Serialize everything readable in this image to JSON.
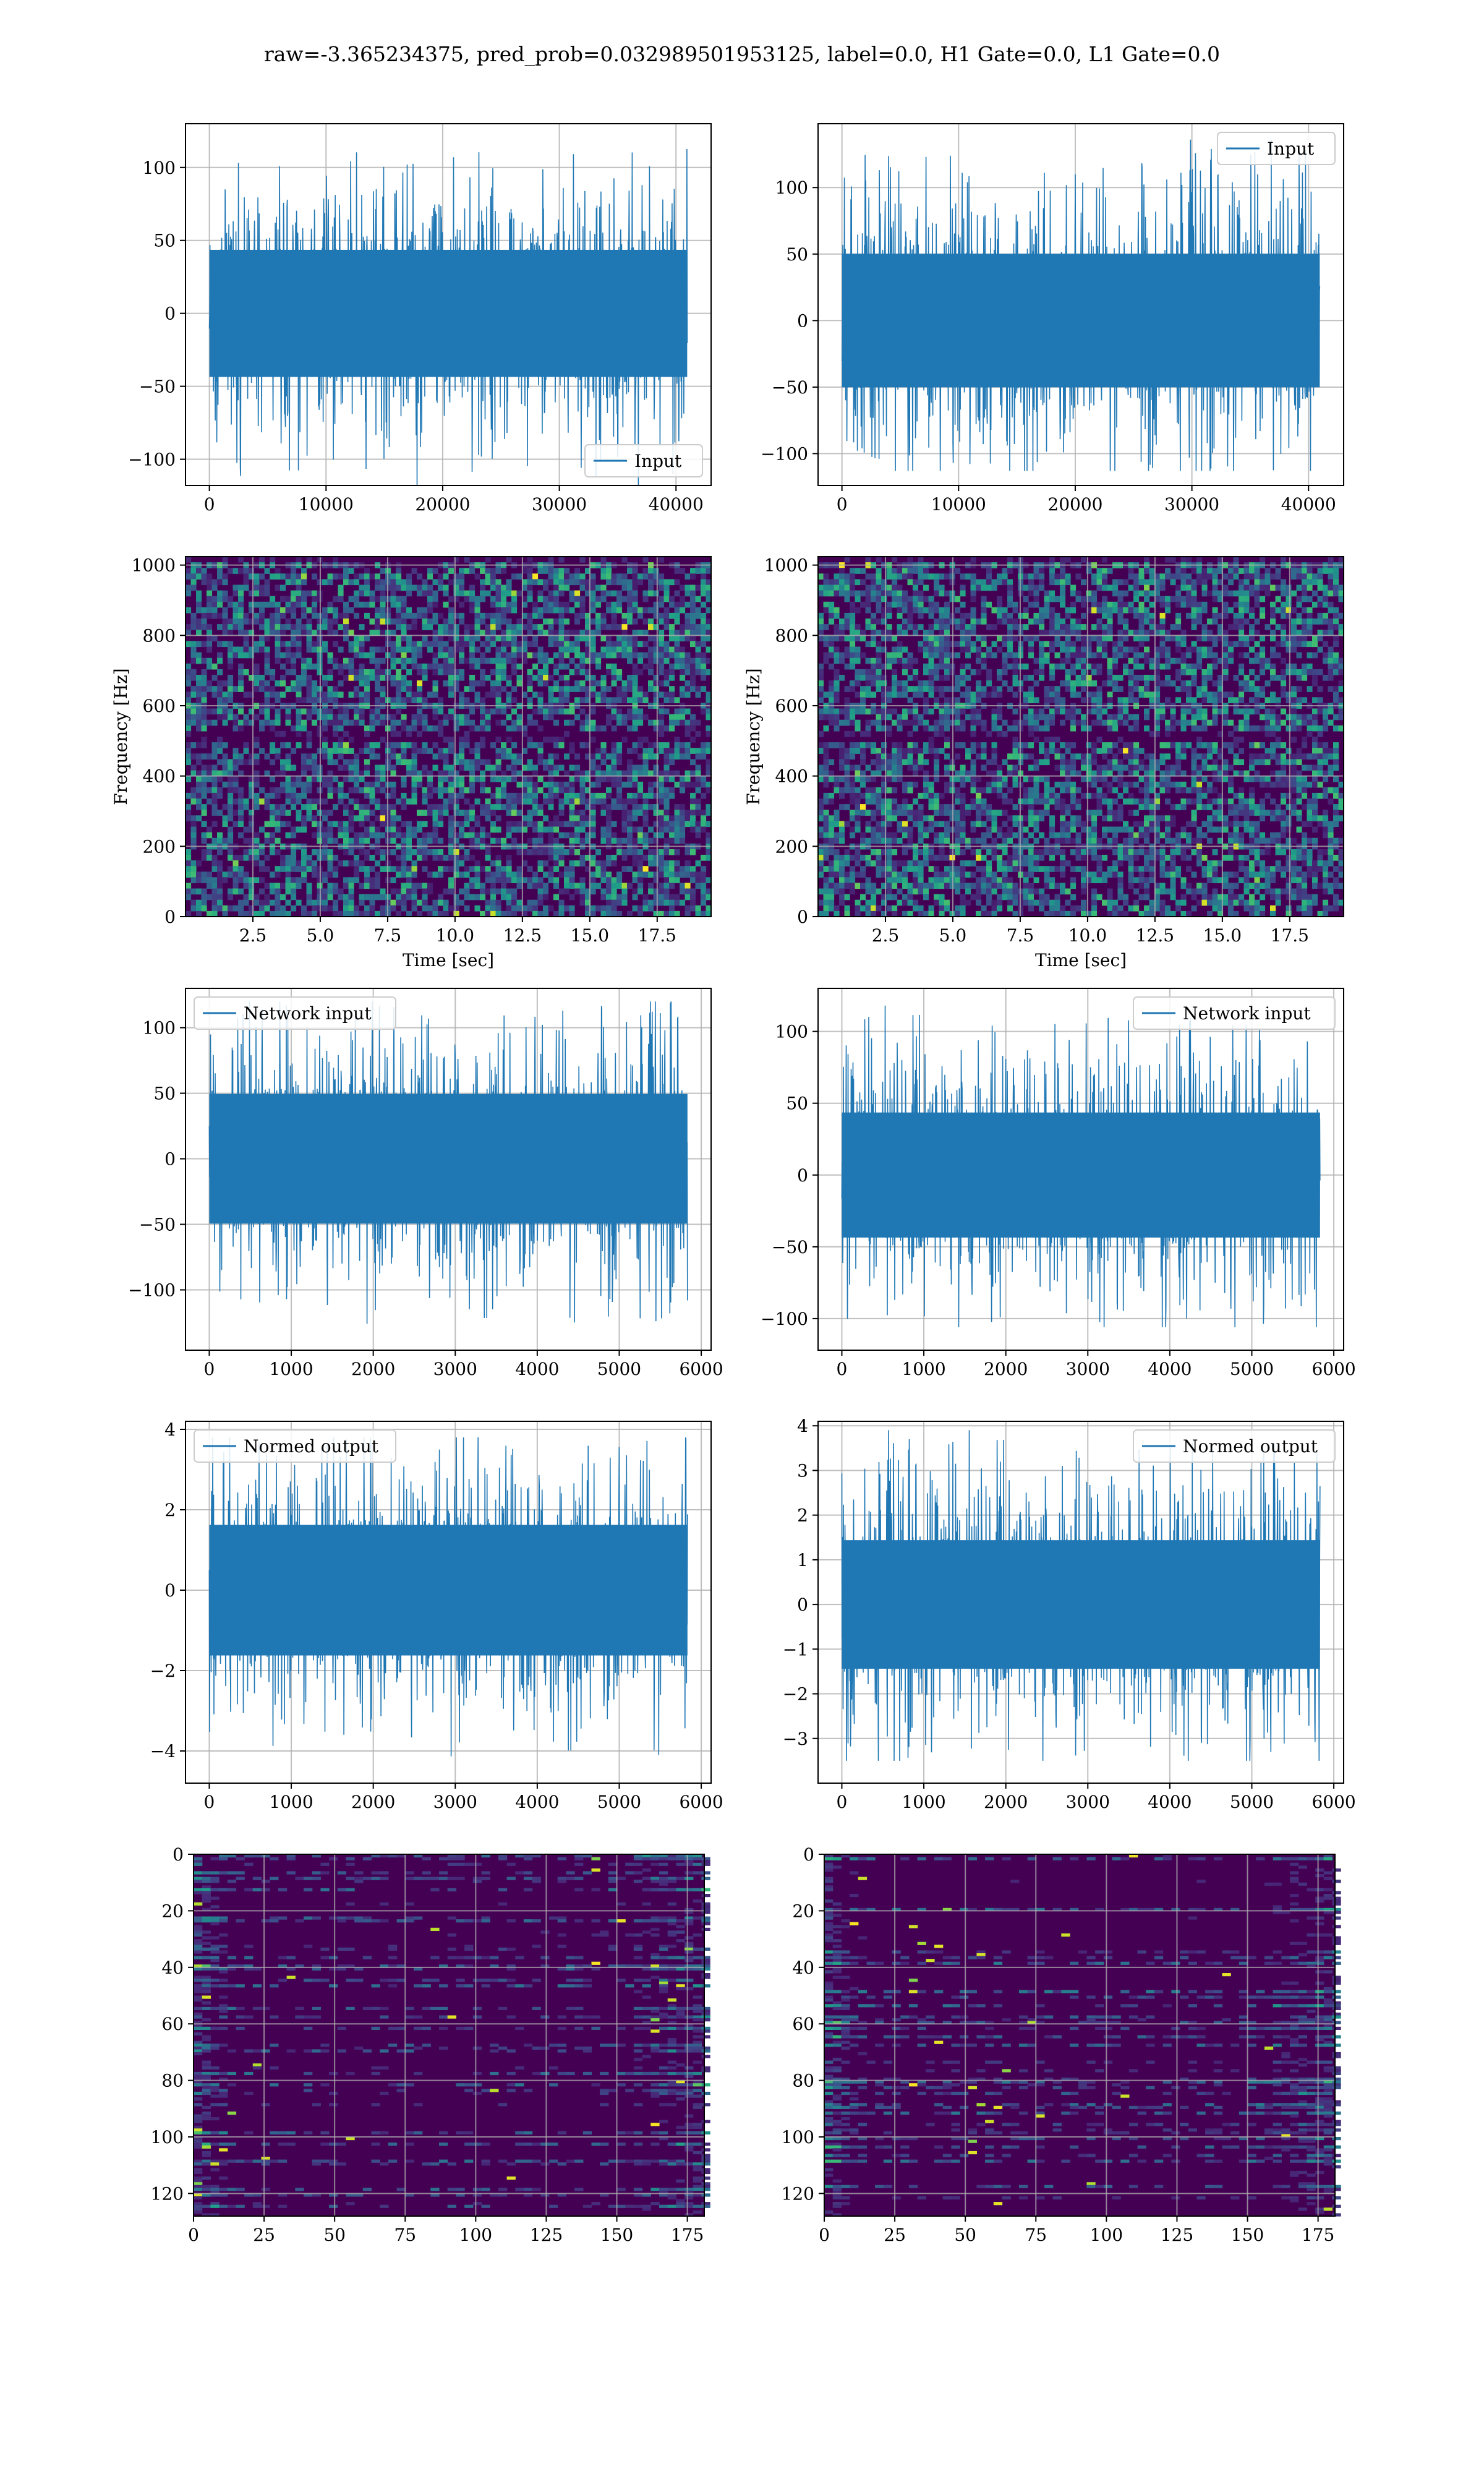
{
  "figure": {
    "title": "raw=-3.365234375, pred_prob=0.032989501953125, label=0.0, H1 Gate=0.0, L1 Gate=0.0",
    "colors": {
      "line": "#1f77b4",
      "grid": "#b0b0b0",
      "viridis_dark": "#440154"
    }
  },
  "chart_data": [
    {
      "type": "line",
      "id": "p1",
      "series": [
        {
          "name": "Input",
          "n_samples": 40960,
          "amplitude_range": [
            -118,
            118
          ]
        }
      ],
      "xlim": [
        -2048,
        43008
      ],
      "ylim": [
        -118,
        130
      ],
      "xticks": [
        0,
        10000,
        20000,
        30000,
        40000
      ],
      "xtick_labels": [
        "0",
        "10000",
        "20000",
        "30000",
        "40000"
      ],
      "yticks": [
        -100,
        -50,
        0,
        50,
        100
      ],
      "ytick_labels": [
        "−100",
        "−50",
        "0",
        "50",
        "100"
      ],
      "legend": "lower-right",
      "grid": true,
      "xlabel": "",
      "ylabel": ""
    },
    {
      "type": "line",
      "id": "p2",
      "series": [
        {
          "name": "Input",
          "n_samples": 40960,
          "amplitude_range": [
            -113,
            136
          ]
        }
      ],
      "xlim": [
        -2048,
        43008
      ],
      "ylim": [
        -124,
        148
      ],
      "xticks": [
        0,
        10000,
        20000,
        30000,
        40000
      ],
      "xtick_labels": [
        "0",
        "10000",
        "20000",
        "30000",
        "40000"
      ],
      "yticks": [
        -100,
        -50,
        0,
        50,
        100
      ],
      "ytick_labels": [
        "−100",
        "−50",
        "0",
        "50",
        "100"
      ],
      "legend": "upper-right",
      "grid": true,
      "xlabel": "",
      "ylabel": ""
    },
    {
      "type": "heatmap",
      "id": "p3",
      "xlim": [
        0,
        19.5
      ],
      "ylim": [
        0,
        1024
      ],
      "xticks": [
        2.5,
        5.0,
        7.5,
        10.0,
        12.5,
        15.0,
        17.5
      ],
      "xtick_labels": [
        "2.5",
        "5.0",
        "7.5",
        "10.0",
        "12.5",
        "15.0",
        "17.5"
      ],
      "yticks": [
        0,
        200,
        400,
        600,
        800,
        1000
      ],
      "ytick_labels": [
        "0",
        "200",
        "400",
        "600",
        "800",
        "1000"
      ],
      "xlabel": "Time [sec]",
      "ylabel": "Frequency [Hz]",
      "grid": true,
      "colormap": "viridis"
    },
    {
      "type": "heatmap",
      "id": "p4",
      "xlim": [
        0,
        19.5
      ],
      "ylim": [
        0,
        1024
      ],
      "xticks": [
        2.5,
        5.0,
        7.5,
        10.0,
        12.5,
        15.0,
        17.5
      ],
      "xtick_labels": [
        "2.5",
        "5.0",
        "7.5",
        "10.0",
        "12.5",
        "15.0",
        "17.5"
      ],
      "yticks": [
        0,
        200,
        400,
        600,
        800,
        1000
      ],
      "ytick_labels": [
        "0",
        "200",
        "400",
        "600",
        "800",
        "1000"
      ],
      "xlabel": "Time [sec]",
      "ylabel": "Frequency [Hz]",
      "grid": true,
      "colormap": "viridis"
    },
    {
      "type": "line",
      "id": "p5",
      "series": [
        {
          "name": "Network input",
          "n_samples": 5832,
          "amplitude_range": [
            -134,
            120
          ]
        }
      ],
      "xlim": [
        -290,
        6120
      ],
      "ylim": [
        -146,
        130
      ],
      "xticks": [
        0,
        1000,
        2000,
        3000,
        4000,
        5000,
        6000
      ],
      "xtick_labels": [
        "0",
        "1000",
        "2000",
        "3000",
        "4000",
        "5000",
        "6000"
      ],
      "yticks": [
        -100,
        -50,
        0,
        50,
        100
      ],
      "ytick_labels": [
        "−100",
        "−50",
        "0",
        "50",
        "100"
      ],
      "legend": "upper-left",
      "grid": true,
      "xlabel": "",
      "ylabel": ""
    },
    {
      "type": "line",
      "id": "p6",
      "series": [
        {
          "name": "Network input",
          "n_samples": 5832,
          "amplitude_range": [
            -106,
            118
          ]
        }
      ],
      "xlim": [
        -290,
        6120
      ],
      "ylim": [
        -122,
        130
      ],
      "xticks": [
        0,
        1000,
        2000,
        3000,
        4000,
        5000,
        6000
      ],
      "xtick_labels": [
        "0",
        "1000",
        "2000",
        "3000",
        "4000",
        "5000",
        "6000"
      ],
      "yticks": [
        -100,
        -50,
        0,
        50,
        100
      ],
      "ytick_labels": [
        "−100",
        "−50",
        "0",
        "50",
        "100"
      ],
      "legend": "upper-right",
      "grid": true,
      "xlabel": "",
      "ylabel": ""
    },
    {
      "type": "line",
      "id": "p7",
      "series": [
        {
          "name": "Normed output",
          "n_samples": 5832,
          "amplitude_range": [
            -4.4,
            3.8
          ]
        }
      ],
      "xlim": [
        -290,
        6120
      ],
      "ylim": [
        -4.8,
        4.2
      ],
      "xticks": [
        0,
        1000,
        2000,
        3000,
        4000,
        5000,
        6000
      ],
      "xtick_labels": [
        "0",
        "1000",
        "2000",
        "3000",
        "4000",
        "5000",
        "6000"
      ],
      "yticks": [
        -4,
        -2,
        0,
        2,
        4
      ],
      "ytick_labels": [
        "−4",
        "−2",
        "0",
        "2",
        "4"
      ],
      "legend": "upper-left",
      "grid": true,
      "xlabel": "",
      "ylabel": ""
    },
    {
      "type": "line",
      "id": "p8",
      "series": [
        {
          "name": "Normed output",
          "n_samples": 5832,
          "amplitude_range": [
            -3.5,
            3.9
          ]
        }
      ],
      "xlim": [
        -290,
        6120
      ],
      "ylim": [
        -4.0,
        4.1
      ],
      "xticks": [
        0,
        1000,
        2000,
        3000,
        4000,
        5000,
        6000
      ],
      "xtick_labels": [
        "0",
        "1000",
        "2000",
        "3000",
        "4000",
        "5000",
        "6000"
      ],
      "yticks": [
        -3,
        -2,
        -1,
        0,
        1,
        2,
        3,
        4
      ],
      "ytick_labels": [
        "−3",
        "−2",
        "−1",
        "0",
        "1",
        "2",
        "3",
        "4"
      ],
      "legend": "upper-right",
      "grid": true,
      "xlabel": "",
      "ylabel": ""
    },
    {
      "type": "heatmap",
      "id": "p9",
      "xlim": [
        0,
        181
      ],
      "ylim": [
        128,
        0
      ],
      "rows": 128,
      "cols": 181,
      "xticks": [
        0,
        25,
        50,
        75,
        100,
        125,
        150,
        175
      ],
      "xtick_labels": [
        "0",
        "25",
        "50",
        "75",
        "100",
        "125",
        "150",
        "175"
      ],
      "yticks": [
        0,
        20,
        40,
        60,
        80,
        100,
        120
      ],
      "ytick_labels": [
        "0",
        "20",
        "40",
        "60",
        "80",
        "100",
        "120"
      ],
      "grid": true,
      "colormap": "viridis",
      "xlabel": "",
      "ylabel": ""
    },
    {
      "type": "heatmap",
      "id": "p10",
      "xlim": [
        0,
        181
      ],
      "ylim": [
        128,
        0
      ],
      "rows": 128,
      "cols": 181,
      "xticks": [
        0,
        25,
        50,
        75,
        100,
        125,
        150,
        175
      ],
      "xtick_labels": [
        "0",
        "25",
        "50",
        "75",
        "100",
        "125",
        "150",
        "175"
      ],
      "yticks": [
        0,
        20,
        40,
        60,
        80,
        100,
        120
      ],
      "ytick_labels": [
        "0",
        "20",
        "40",
        "60",
        "80",
        "100",
        "120"
      ],
      "grid": true,
      "colormap": "viridis",
      "xlabel": "",
      "ylabel": ""
    }
  ]
}
